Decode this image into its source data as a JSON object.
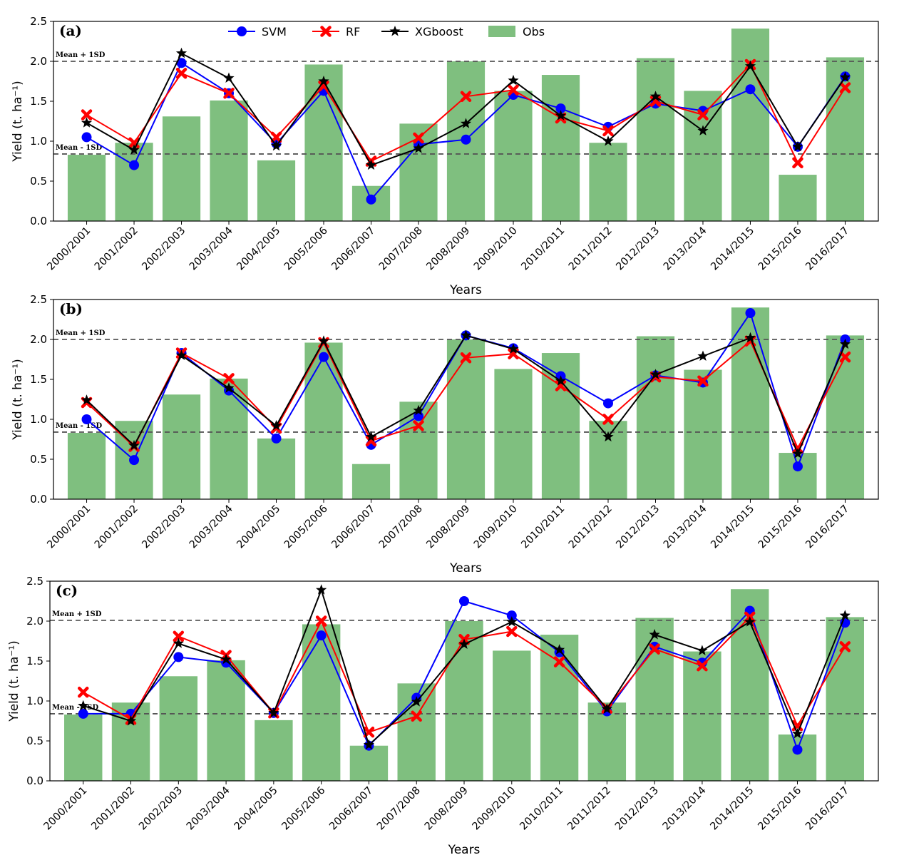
{
  "chart_data": [
    {
      "type": "bar",
      "panel_label": "(a)",
      "categories": [
        "2000/2001",
        "2001/2002",
        "2002/2003",
        "2003/2004",
        "2004/2005",
        "2005/2006",
        "2006/2007",
        "2007/2008",
        "2008/2009",
        "2009/2010",
        "2010/2011",
        "2011/2012",
        "2012/2013",
        "2013/2014",
        "2014/2015",
        "2015/2016",
        "2016/2017"
      ],
      "xlabel": "Years",
      "ylabel": "Yield (t. ha⁻¹)",
      "ylim": [
        0,
        2.5
      ],
      "yticks": [
        "0.0",
        "0.5",
        "1.0",
        "1.5",
        "2.0",
        "2.5"
      ],
      "reference_lines": [
        {
          "value": 2.0,
          "label": "Mean + 1SD"
        },
        {
          "value": 0.84,
          "label": "Mean - 1SD"
        }
      ],
      "legend": [
        "SVM",
        "RF",
        "XGboost",
        "Obs"
      ],
      "obs": [
        0.83,
        0.98,
        1.31,
        1.51,
        0.76,
        1.96,
        0.44,
        1.22,
        2.0,
        1.63,
        1.83,
        0.98,
        2.04,
        1.63,
        2.41,
        0.58,
        2.05
      ],
      "series": [
        {
          "name": "SVM",
          "values": [
            1.05,
            0.7,
            1.98,
            1.6,
            0.97,
            1.63,
            0.27,
            0.96,
            1.02,
            1.58,
            1.41,
            1.18,
            1.47,
            1.38,
            1.65,
            0.93,
            1.81
          ]
        },
        {
          "name": "RF",
          "values": [
            1.33,
            0.98,
            1.85,
            1.6,
            1.05,
            1.69,
            0.75,
            1.04,
            1.56,
            1.64,
            1.29,
            1.13,
            1.5,
            1.33,
            1.96,
            0.73,
            1.67
          ]
        },
        {
          "name": "XGboost",
          "values": [
            1.23,
            0.89,
            2.1,
            1.79,
            0.94,
            1.75,
            0.7,
            0.91,
            1.22,
            1.76,
            1.32,
            1.0,
            1.56,
            1.13,
            1.94,
            0.93,
            1.8
          ]
        }
      ]
    },
    {
      "type": "bar",
      "panel_label": "(b)",
      "categories": [
        "2000/2001",
        "2001/2002",
        "2002/2003",
        "2003/2004",
        "2004/2005",
        "2005/2006",
        "2006/2007",
        "2007/2008",
        "2008/2009",
        "2009/2010",
        "2010/2011",
        "2011/2012",
        "2012/2013",
        "2013/2014",
        "2014/2015",
        "2015/2016",
        "2016/2017"
      ],
      "xlabel": "Years",
      "ylabel": "Yield (t. ha⁻¹)",
      "ylim": [
        0,
        2.5
      ],
      "yticks": [
        "0.0",
        "0.5",
        "1.0",
        "1.5",
        "2.0",
        "2.5"
      ],
      "reference_lines": [
        {
          "value": 2.0,
          "label": "Mean + 1SD"
        },
        {
          "value": 0.84,
          "label": "Mean - 1SD"
        }
      ],
      "obs": [
        0.83,
        0.98,
        1.31,
        1.51,
        0.76,
        1.96,
        0.44,
        1.22,
        2.0,
        1.63,
        1.83,
        0.98,
        2.04,
        1.62,
        2.4,
        0.58,
        2.05
      ],
      "series": [
        {
          "name": "SVM",
          "values": [
            1.0,
            0.49,
            1.83,
            1.36,
            0.76,
            1.78,
            0.68,
            1.04,
            2.05,
            1.89,
            1.54,
            1.2,
            1.55,
            1.46,
            2.33,
            0.41,
            2.0
          ]
        },
        {
          "name": "RF",
          "values": [
            1.21,
            0.66,
            1.83,
            1.51,
            0.89,
            1.96,
            0.73,
            0.92,
            1.77,
            1.82,
            1.42,
            1.0,
            1.53,
            1.48,
            1.98,
            0.64,
            1.78
          ]
        },
        {
          "name": "XGboost",
          "values": [
            1.24,
            0.67,
            1.8,
            1.39,
            0.92,
            1.98,
            0.78,
            1.11,
            2.05,
            1.88,
            1.48,
            0.78,
            1.56,
            1.79,
            2.02,
            0.57,
            1.94
          ]
        }
      ]
    },
    {
      "type": "bar",
      "panel_label": "(c)",
      "categories": [
        "2000/2001",
        "2001/2002",
        "2002/2003",
        "2003/2004",
        "2004/2005",
        "2005/2006",
        "2006/2007",
        "2007/2008",
        "2008/2009",
        "2009/2010",
        "2010/2011",
        "2011/2012",
        "2012/2013",
        "2013/2014",
        "2014/2015",
        "2015/2016",
        "2016/2017"
      ],
      "xlabel": "Years",
      "ylabel": "Yield (t. ha⁻¹)",
      "ylim": [
        0,
        2.5
      ],
      "yticks": [
        "0.0",
        "0.5",
        "1.0",
        "1.5",
        "2.0",
        "2.5"
      ],
      "reference_lines": [
        {
          "value": 2.01,
          "label": "Mean + 1SD"
        },
        {
          "value": 0.84,
          "label": "Mean - 1SD"
        }
      ],
      "obs": [
        0.83,
        0.98,
        1.31,
        1.51,
        0.76,
        1.96,
        0.44,
        1.22,
        2.0,
        1.63,
        1.83,
        0.98,
        2.04,
        1.62,
        2.4,
        0.58,
        2.05
      ],
      "series": [
        {
          "name": "SVM",
          "values": [
            0.84,
            0.84,
            1.55,
            1.48,
            0.85,
            1.82,
            0.44,
            1.04,
            2.25,
            2.07,
            1.61,
            0.87,
            1.68,
            1.48,
            2.13,
            0.39,
            1.98
          ]
        },
        {
          "name": "RF",
          "values": [
            1.11,
            0.77,
            1.81,
            1.57,
            0.85,
            2.0,
            0.61,
            0.81,
            1.77,
            1.87,
            1.49,
            0.91,
            1.65,
            1.44,
            2.05,
            0.69,
            1.68
          ]
        },
        {
          "name": "XGboost",
          "values": [
            0.94,
            0.75,
            1.72,
            1.52,
            0.85,
            2.39,
            0.45,
            0.99,
            1.71,
            1.99,
            1.64,
            0.9,
            1.83,
            1.63,
            1.99,
            0.59,
            2.07
          ]
        }
      ]
    }
  ],
  "colors": {
    "obs": "#7fbf7f",
    "SVM": "#0000ff",
    "RF": "#ff0000",
    "XGboost": "#000000",
    "refline": "#555555"
  }
}
